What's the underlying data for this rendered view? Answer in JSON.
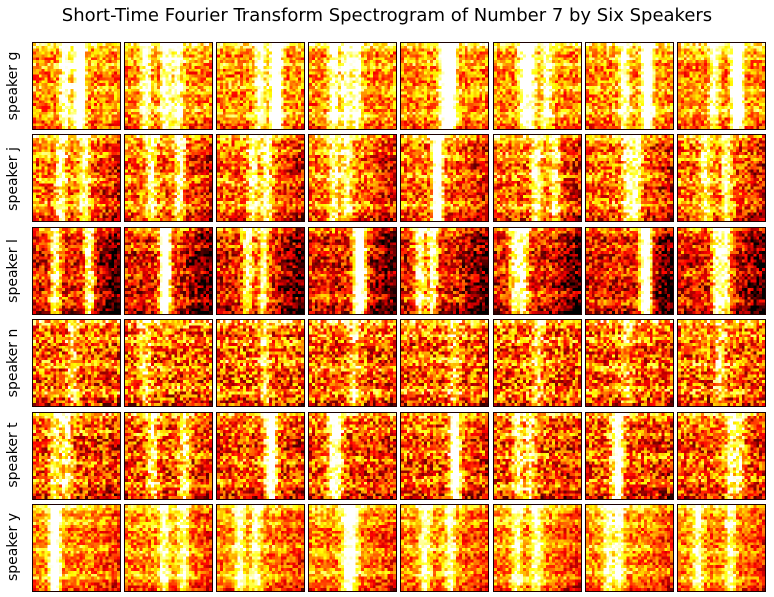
{
  "title": "Short-Time Fourier Transform Spectrogram of Number 7 by Six Speakers",
  "rows": [
    {
      "label": "speaker g"
    },
    {
      "label": "speaker j"
    },
    {
      "label": "speaker l"
    },
    {
      "label": "speaker n"
    },
    {
      "label": "speaker t"
    },
    {
      "label": "speaker y"
    }
  ],
  "chart_data": {
    "type": "heatmap",
    "title": "Short-Time Fourier Transform Spectrogram of Number 7 by Six Speakers",
    "rows": [
      "speaker g",
      "speaker j",
      "speaker l",
      "speaker n",
      "speaker t",
      "speaker y"
    ],
    "columns_per_row": 8,
    "colormap": "hot",
    "colormap_stops": [
      "#000000",
      "#8b0000",
      "#ff0000",
      "#ff8c00",
      "#ffff00",
      "#ffffc0"
    ],
    "axes_visible": false
  }
}
